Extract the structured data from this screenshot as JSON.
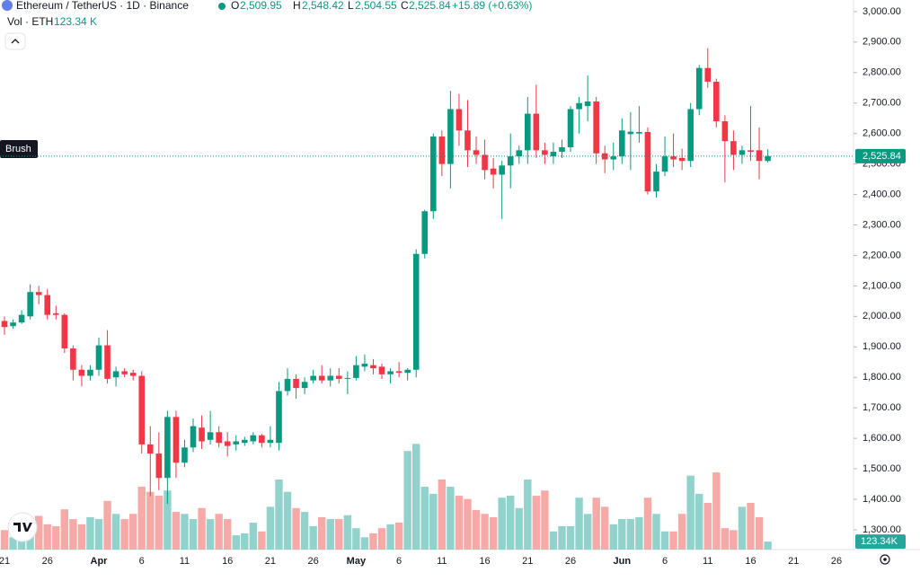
{
  "header": {
    "symbol": "Ethereum / TetherUS · 1D · Binance",
    "o_label": "O",
    "o_value": "2,509.95",
    "h_label": "H",
    "h_value": "2,548.42",
    "l_label": "L",
    "l_value": "2,504.55",
    "c_label": "C",
    "c_value": "2,525.84",
    "change": "+15.89 (+0.63%)",
    "volume_label": "Vol · ETH",
    "volume_value": "123.34 K"
  },
  "brush_label": "Brush",
  "chart_data": {
    "type": "candlestick",
    "categories": [
      "21",
      null,
      null,
      null,
      null,
      "26",
      null,
      null,
      null,
      null,
      null,
      "Apr",
      null,
      null,
      null,
      null,
      "6",
      null,
      null,
      null,
      null,
      "11",
      null,
      null,
      null,
      null,
      "16",
      null,
      null,
      null,
      null,
      "21",
      null,
      null,
      null,
      null,
      "26",
      null,
      null,
      null,
      null,
      "May",
      null,
      null,
      null,
      null,
      "6",
      null,
      null,
      null,
      null,
      "11",
      null,
      null,
      null,
      null,
      "16",
      null,
      null,
      null,
      null,
      "21",
      null,
      null,
      null,
      null,
      "26",
      null,
      null,
      null,
      null,
      null,
      "Jun",
      null,
      null,
      null,
      null,
      "6",
      null,
      null,
      null,
      null,
      "11",
      null,
      null,
      null,
      null,
      "16",
      null,
      null,
      null,
      null,
      "21",
      null,
      null,
      null,
      null,
      "26"
    ],
    "open": [
      1985,
      1968,
      1980,
      2000,
      2080,
      2070,
      2010,
      2005,
      1895,
      1825,
      1805,
      1825,
      1905,
      1800,
      1820,
      1815,
      1805,
      1580,
      1550,
      1470,
      1670,
      1520,
      1570,
      1635,
      1595,
      1620,
      1590,
      1580,
      1585,
      1590,
      1610,
      1585,
      1585,
      1755,
      1795,
      1765,
      1790,
      1805,
      1790,
      1805,
      1795,
      1798,
      1835,
      1840,
      1835,
      1810,
      1820,
      1815,
      1825,
      2205,
      2345,
      2590,
      2500,
      2680,
      2610,
      2545,
      2530,
      2485,
      2465,
      2495,
      2525,
      2545,
      2665,
      2545,
      2525,
      2540,
      2555,
      2680,
      2690,
      2705,
      2535,
      2515,
      2525,
      2598,
      2600,
      2605,
      2410,
      2475,
      2525,
      2520,
      2510,
      2680,
      2815,
      2770,
      2640,
      2575,
      2530,
      2545,
      2545,
      2509.95,
      null,
      null,
      null,
      null,
      null,
      null,
      null,
      null
    ],
    "high": [
      2000,
      1990,
      2020,
      2105,
      2100,
      2090,
      2035,
      2010,
      1905,
      1840,
      1840,
      1930,
      1955,
      1835,
      1830,
      1825,
      1820,
      1640,
      1620,
      1690,
      1690,
      1595,
      1665,
      1675,
      1690,
      1640,
      1620,
      1610,
      1605,
      1620,
      1615,
      1640,
      1785,
      1830,
      1810,
      1800,
      1825,
      1840,
      1830,
      1830,
      1820,
      1870,
      1875,
      1860,
      1845,
      1830,
      1850,
      1830,
      2220,
      2350,
      2600,
      2610,
      2740,
      2730,
      2710,
      2590,
      2580,
      2520,
      2510,
      2600,
      2560,
      2720,
      2760,
      2570,
      2570,
      2580,
      2690,
      2720,
      2790,
      2720,
      2560,
      2570,
      2650,
      2670,
      2690,
      2620,
      2500,
      2590,
      2600,
      2550,
      2700,
      2825,
      2880,
      2780,
      2660,
      2610,
      2560,
      2690,
      2620,
      2548.42,
      null,
      null,
      null,
      null,
      null,
      null,
      null,
      null
    ],
    "low": [
      1940,
      1960,
      1975,
      1990,
      2040,
      1990,
      1990,
      1880,
      1790,
      1770,
      1790,
      1805,
      1780,
      1770,
      1800,
      1790,
      1550,
      1410,
      1430,
      1385,
      1470,
      1505,
      1555,
      1565,
      1580,
      1570,
      1540,
      1560,
      1575,
      1580,
      1570,
      1570,
      1560,
      1740,
      1730,
      1745,
      1780,
      1780,
      1770,
      1780,
      1745,
      1790,
      1820,
      1810,
      1795,
      1780,
      1800,
      1790,
      1800,
      2190,
      2320,
      2460,
      2420,
      2560,
      2490,
      2500,
      2450,
      2420,
      2320,
      2420,
      2500,
      2500,
      2520,
      2500,
      2500,
      2520,
      2540,
      2600,
      2640,
      2500,
      2470,
      2480,
      2500,
      2480,
      2570,
      2400,
      2390,
      2460,
      2490,
      2480,
      2490,
      2660,
      2750,
      2620,
      2440,
      2480,
      2500,
      2510,
      2450,
      2504.55,
      null,
      null,
      null,
      null,
      null,
      null,
      null,
      null
    ],
    "close": [
      1965,
      1980,
      2005,
      2080,
      2070,
      2005,
      2005,
      1895,
      1825,
      1805,
      1825,
      1905,
      1795,
      1820,
      1810,
      1805,
      1580,
      1550,
      1470,
      1670,
      1520,
      1570,
      1640,
      1590,
      1620,
      1585,
      1575,
      1590,
      1595,
      1610,
      1585,
      1595,
      1755,
      1795,
      1765,
      1785,
      1805,
      1790,
      1805,
      1795,
      1798,
      1840,
      1845,
      1830,
      1810,
      1820,
      1815,
      1825,
      2205,
      2345,
      2590,
      2500,
      2680,
      2610,
      2545,
      2530,
      2480,
      2465,
      2495,
      2525,
      2545,
      2665,
      2545,
      2530,
      2540,
      2555,
      2680,
      2700,
      2705,
      2535,
      2515,
      2525,
      2610,
      2606,
      2605,
      2410,
      2475,
      2525,
      2515,
      2510,
      2680,
      2815,
      2770,
      2640,
      2575,
      2530,
      2545,
      2540,
      2510,
      2525.84,
      null,
      null,
      null,
      null,
      null,
      null,
      null,
      null
    ],
    "volume": [
      300,
      190,
      250,
      390,
      520,
      390,
      360,
      620,
      470,
      390,
      500,
      470,
      750,
      550,
      470,
      550,
      970,
      890,
      830,
      910,
      580,
      550,
      470,
      640,
      470,
      550,
      470,
      220,
      250,
      415,
      280,
      660,
      1080,
      890,
      640,
      580,
      360,
      500,
      470,
      470,
      530,
      330,
      190,
      250,
      330,
      390,
      415,
      1520,
      1630,
      970,
      860,
      1080,
      970,
      830,
      780,
      610,
      550,
      500,
      800,
      830,
      640,
      1080,
      830,
      910,
      280,
      360,
      360,
      800,
      550,
      800,
      660,
      390,
      470,
      470,
      500,
      800,
      550,
      280,
      280,
      550,
      1140,
      860,
      720,
      1190,
      330,
      300,
      660,
      720,
      500,
      123.34,
      null,
      null,
      null,
      null,
      null,
      null,
      null,
      null
    ],
    "volume_lim": [
      0,
      1800
    ],
    "ylim": [
      1235,
      3038
    ],
    "yticks": [
      {
        "value": 1300,
        "label": "1,300.00"
      },
      {
        "value": 1400,
        "label": "1,400.00"
      },
      {
        "value": 1500,
        "label": "1,500.00"
      },
      {
        "value": 1600,
        "label": "1,600.00"
      },
      {
        "value": 1700,
        "label": "1,700.00"
      },
      {
        "value": 1800,
        "label": "1,800.00"
      },
      {
        "value": 1900,
        "label": "1,900.00"
      },
      {
        "value": 2000,
        "label": "2,000.00"
      },
      {
        "value": 2100,
        "label": "2,100.00"
      },
      {
        "value": 2200,
        "label": "2,200.00"
      },
      {
        "value": 2300,
        "label": "2,300.00"
      },
      {
        "value": 2400,
        "label": "2,400.00"
      },
      {
        "value": 2500,
        "label": "2,500.00"
      },
      {
        "value": 2600,
        "label": "2,600.00"
      },
      {
        "value": 2700,
        "label": "2,700.00"
      },
      {
        "value": 2800,
        "label": "2,800.00"
      },
      {
        "value": 2900,
        "label": "2,900.00"
      },
      {
        "value": 3000,
        "label": "3,000.00"
      }
    ],
    "last_price": {
      "value": 2525.84,
      "label": "2,525.84"
    },
    "last_volume_label": "123.34K",
    "grid": false,
    "up_color": "#089981",
    "down_color": "#f23645",
    "up_volume_color": "#92d2cc",
    "down_volume_color": "#f7a9a7"
  }
}
